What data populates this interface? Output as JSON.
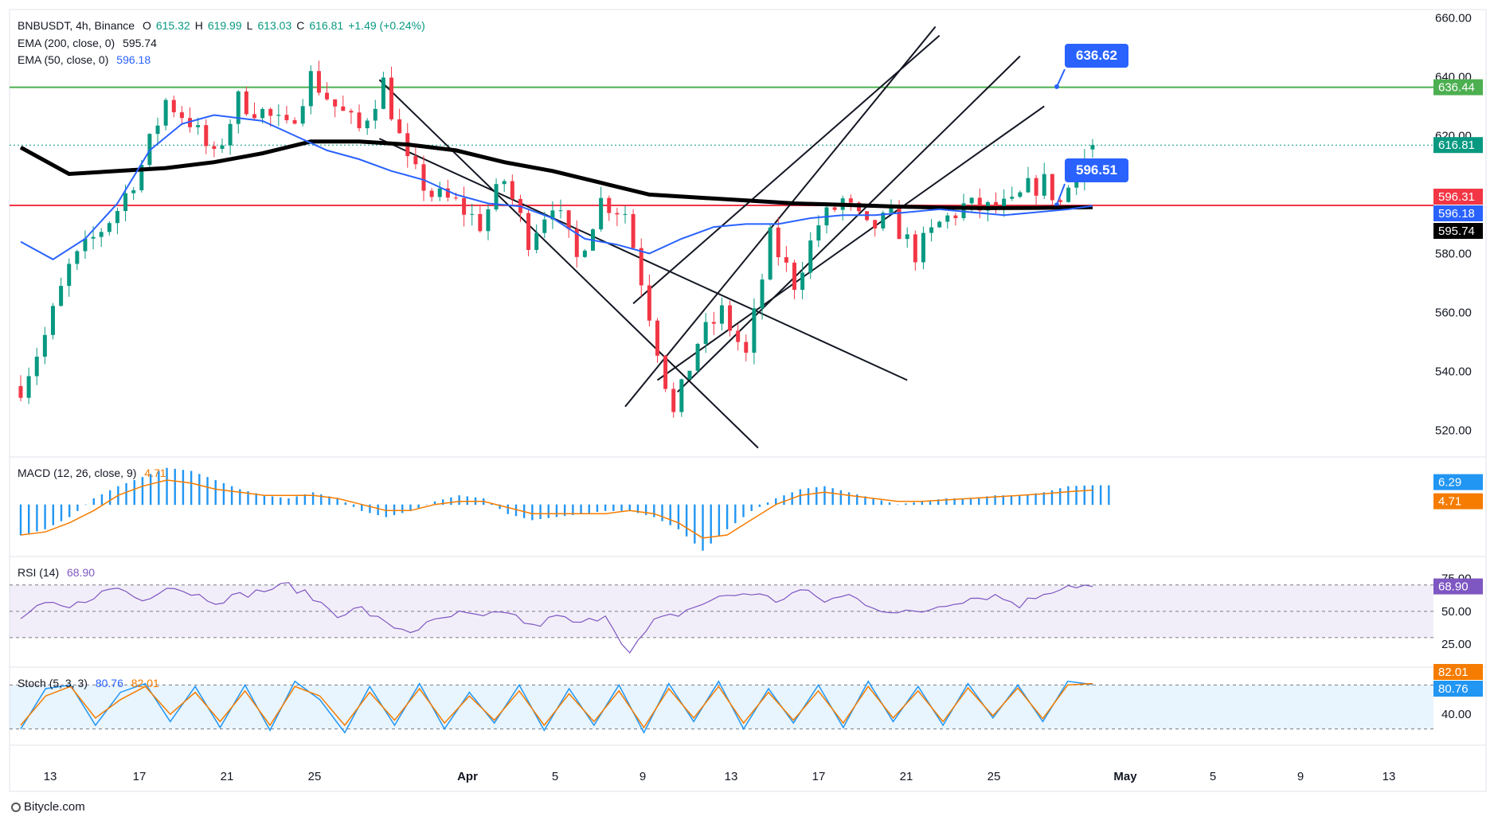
{
  "header": {
    "symbol": "BNBUSDT, 4h, Binance",
    "open_label": "O",
    "open": "615.32",
    "high_label": "H",
    "high": "619.99",
    "low_label": "L",
    "low": "613.03",
    "close_label": "C",
    "close": "616.81",
    "change": "+1.49 (+0.24%)"
  },
  "ema200": {
    "label": "EMA (200, close, 0)",
    "value": "595.74"
  },
  "ema50": {
    "label": "EMA (50, close, 0)",
    "value": "596.18"
  },
  "macd": {
    "label": "MACD (12, 26, close, 9)",
    "value": "4.71"
  },
  "rsi": {
    "label": "RSI (14)",
    "value": "68.90"
  },
  "stoch": {
    "label": "Stoch (5, 3, 3)",
    "k": "80.76",
    "d": "82.01"
  },
  "callouts": {
    "upper": "636.62",
    "lower": "596.51"
  },
  "footer": {
    "brand": "Bitycle.com"
  },
  "colors": {
    "up": "#089981",
    "down": "#f23645",
    "ema50": "#2962ff",
    "ema200": "#000000",
    "resistance": "#4caf50",
    "support": "#f23645",
    "macd_hist": "#2196f3",
    "macd_signal": "#f57c00",
    "rsi": "#7e57c2",
    "stoch_k": "#2196f3",
    "stoch_d": "#f57c00"
  },
  "chart_data": [
    {
      "type": "candlestick",
      "title": "BNBUSDT, 4h, Binance",
      "x_ticks": [
        "13",
        "17",
        "21",
        "25",
        "Apr",
        "5",
        "9",
        "13",
        "17",
        "21",
        "25",
        "May",
        "5",
        "9",
        "13"
      ],
      "ylim": [
        512,
        662
      ],
      "y_ticks": [
        520,
        540,
        560,
        580,
        600,
        620,
        640,
        660
      ],
      "price_labels": [
        {
          "value": 636.44,
          "text": "636.44",
          "color": "#4caf50"
        },
        {
          "value": 616.81,
          "text": "616.81",
          "color": "#089981"
        },
        {
          "value": 596.31,
          "text": "596.31",
          "color": "#f23645"
        },
        {
          "value": 596.18,
          "text": "596.18",
          "color": "#2962ff"
        },
        {
          "value": 595.74,
          "text": "595.74",
          "color": "#000000"
        }
      ],
      "horizontal_lines": [
        {
          "name": "resistance",
          "value": 636.44
        },
        {
          "name": "support",
          "value": 596.31
        },
        {
          "name": "last-price",
          "value": 616.81
        }
      ],
      "price_path": [
        [
          0,
          535
        ],
        [
          3,
          552
        ],
        [
          6,
          575
        ],
        [
          9,
          585
        ],
        [
          12,
          595
        ],
        [
          15,
          610
        ],
        [
          18,
          632
        ],
        [
          21,
          625
        ],
        [
          24,
          612
        ],
        [
          27,
          632
        ],
        [
          30,
          628
        ],
        [
          33,
          622
        ],
        [
          36,
          640
        ],
        [
          39,
          630
        ],
        [
          42,
          622
        ],
        [
          45,
          638
        ],
        [
          48,
          610
        ],
        [
          51,
          600
        ],
        [
          54,
          597
        ],
        [
          57,
          590
        ],
        [
          60,
          605
        ],
        [
          63,
          585
        ],
        [
          66,
          598
        ],
        [
          69,
          578
        ],
        [
          72,
          598
        ],
        [
          75,
          594
        ],
        [
          78,
          560
        ],
        [
          81,
          525
        ],
        [
          84,
          550
        ],
        [
          87,
          560
        ],
        [
          90,
          545
        ],
        [
          93,
          585
        ],
        [
          96,
          570
        ],
        [
          99,
          590
        ],
        [
          102,
          598
        ],
        [
          105,
          588
        ],
        [
          108,
          592
        ],
        [
          111,
          580
        ],
        [
          114,
          590
        ],
        [
          117,
          596
        ],
        [
          120,
          595
        ],
        [
          123,
          596
        ],
        [
          125,
          602
        ],
        [
          127,
          604
        ],
        [
          129,
          597
        ],
        [
          131,
          608
        ],
        [
          133,
          617
        ]
      ],
      "ema50_path": [
        [
          0,
          584
        ],
        [
          4,
          578
        ],
        [
          8,
          585
        ],
        [
          12,
          597
        ],
        [
          16,
          615
        ],
        [
          20,
          624
        ],
        [
          24,
          627
        ],
        [
          27,
          626
        ],
        [
          30,
          625
        ],
        [
          34,
          620
        ],
        [
          38,
          615
        ],
        [
          42,
          612
        ],
        [
          46,
          608
        ],
        [
          50,
          605
        ],
        [
          54,
          600
        ],
        [
          58,
          597
        ],
        [
          62,
          596
        ],
        [
          66,
          592
        ],
        [
          70,
          585
        ],
        [
          74,
          583
        ],
        [
          78,
          580
        ],
        [
          82,
          585
        ],
        [
          86,
          589
        ],
        [
          90,
          590
        ],
        [
          94,
          590
        ],
        [
          98,
          592
        ],
        [
          102,
          593
        ],
        [
          106,
          593
        ],
        [
          110,
          594
        ],
        [
          114,
          595
        ],
        [
          118,
          594
        ],
        [
          122,
          593
        ],
        [
          126,
          594
        ],
        [
          130,
          595
        ],
        [
          133,
          596.18
        ]
      ],
      "ema200_path": [
        [
          0,
          616
        ],
        [
          6,
          607
        ],
        [
          12,
          608
        ],
        [
          18,
          609
        ],
        [
          24,
          611
        ],
        [
          30,
          614
        ],
        [
          36,
          618
        ],
        [
          42,
          618
        ],
        [
          48,
          617
        ],
        [
          54,
          615
        ],
        [
          60,
          611
        ],
        [
          66,
          608
        ],
        [
          72,
          604
        ],
        [
          78,
          600
        ],
        [
          84,
          599
        ],
        [
          90,
          598
        ],
        [
          96,
          597
        ],
        [
          102,
          596.5
        ],
        [
          108,
          596
        ],
        [
          114,
          595.6
        ],
        [
          120,
          595.4
        ],
        [
          126,
          595.5
        ],
        [
          133,
          595.74
        ]
      ]
    },
    {
      "type": "bar",
      "title": "MACD (12, 26, close, 9)",
      "ylim": [
        -16,
        14
      ],
      "series": [
        {
          "name": "histogram",
          "values": [
            -10,
            -8,
            -4,
            2,
            6,
            9,
            12,
            11,
            8,
            5,
            3,
            2,
            4,
            2,
            -2,
            -4,
            -2,
            1,
            3,
            2,
            -3,
            -5,
            -4,
            -3,
            -2,
            -2,
            -4,
            -8,
            -15,
            -8,
            -2,
            2,
            5,
            6,
            4,
            2,
            0,
            1,
            2,
            2,
            3,
            3,
            4,
            6,
            6.29
          ]
        },
        {
          "name": "signal",
          "values": [
            -10,
            -9,
            -6,
            -2,
            3,
            6,
            8,
            7,
            5,
            4,
            3,
            3,
            3,
            2,
            0,
            -2,
            -2,
            0,
            1,
            1,
            -1,
            -3,
            -3,
            -3,
            -3,
            -2,
            -3,
            -6,
            -11,
            -10,
            -5,
            0,
            3,
            4,
            3,
            2,
            1,
            1,
            1.5,
            2,
            2.5,
            3,
            3.5,
            4.2,
            4.71
          ]
        }
      ],
      "price_labels": [
        {
          "value": 6.29,
          "text": "6.29",
          "color": "#2196f3"
        },
        {
          "value": 4.71,
          "text": "4.71",
          "color": "#f57c00"
        }
      ]
    },
    {
      "type": "line",
      "title": "RSI (14)",
      "ylim": [
        10,
        88
      ],
      "y_ticks": [
        25,
        50,
        75
      ],
      "band": [
        30,
        70
      ],
      "series": [
        {
          "name": "RSI",
          "values": [
            45,
            55,
            52,
            62,
            68,
            58,
            70,
            64,
            58,
            62,
            66,
            70,
            60,
            48,
            52,
            40,
            35,
            42,
            48,
            45,
            50,
            38,
            46,
            40,
            48,
            18,
            42,
            48,
            56,
            62,
            64,
            58,
            66,
            58,
            62,
            54,
            48,
            50,
            56,
            60,
            62,
            55,
            64,
            70,
            68.9
          ]
        }
      ],
      "price_labels": [
        {
          "value": 68.9,
          "text": "68.90",
          "color": "#7e57c2"
        }
      ]
    },
    {
      "type": "line",
      "title": "Stoch (5, 3, 3)",
      "ylim": [
        0,
        100
      ],
      "y_ticks": [
        40,
        80
      ],
      "band": [
        20,
        80
      ],
      "series": [
        {
          "name": "%K",
          "values": [
            20,
            75,
            80,
            25,
            70,
            82,
            30,
            78,
            22,
            80,
            18,
            85,
            60,
            15,
            78,
            25,
            82,
            20,
            70,
            28,
            80,
            18,
            75,
            25,
            80,
            15,
            82,
            30,
            85,
            20,
            75,
            28,
            80,
            22,
            85,
            30,
            78,
            25,
            82,
            35,
            80,
            30,
            85,
            80.76
          ]
        },
        {
          "name": "%D",
          "values": [
            25,
            65,
            78,
            35,
            60,
            78,
            40,
            70,
            30,
            72,
            25,
            78,
            65,
            25,
            70,
            32,
            75,
            28,
            65,
            32,
            72,
            25,
            68,
            30,
            72,
            22,
            75,
            35,
            78,
            28,
            70,
            32,
            72,
            28,
            78,
            35,
            72,
            30,
            76,
            38,
            76,
            34,
            80,
            82.01
          ]
        }
      ],
      "price_labels": [
        {
          "value": 82.01,
          "text": "82.01",
          "color": "#f57c00"
        },
        {
          "value": 80.76,
          "text": "80.76",
          "color": "#2196f3"
        }
      ]
    }
  ]
}
